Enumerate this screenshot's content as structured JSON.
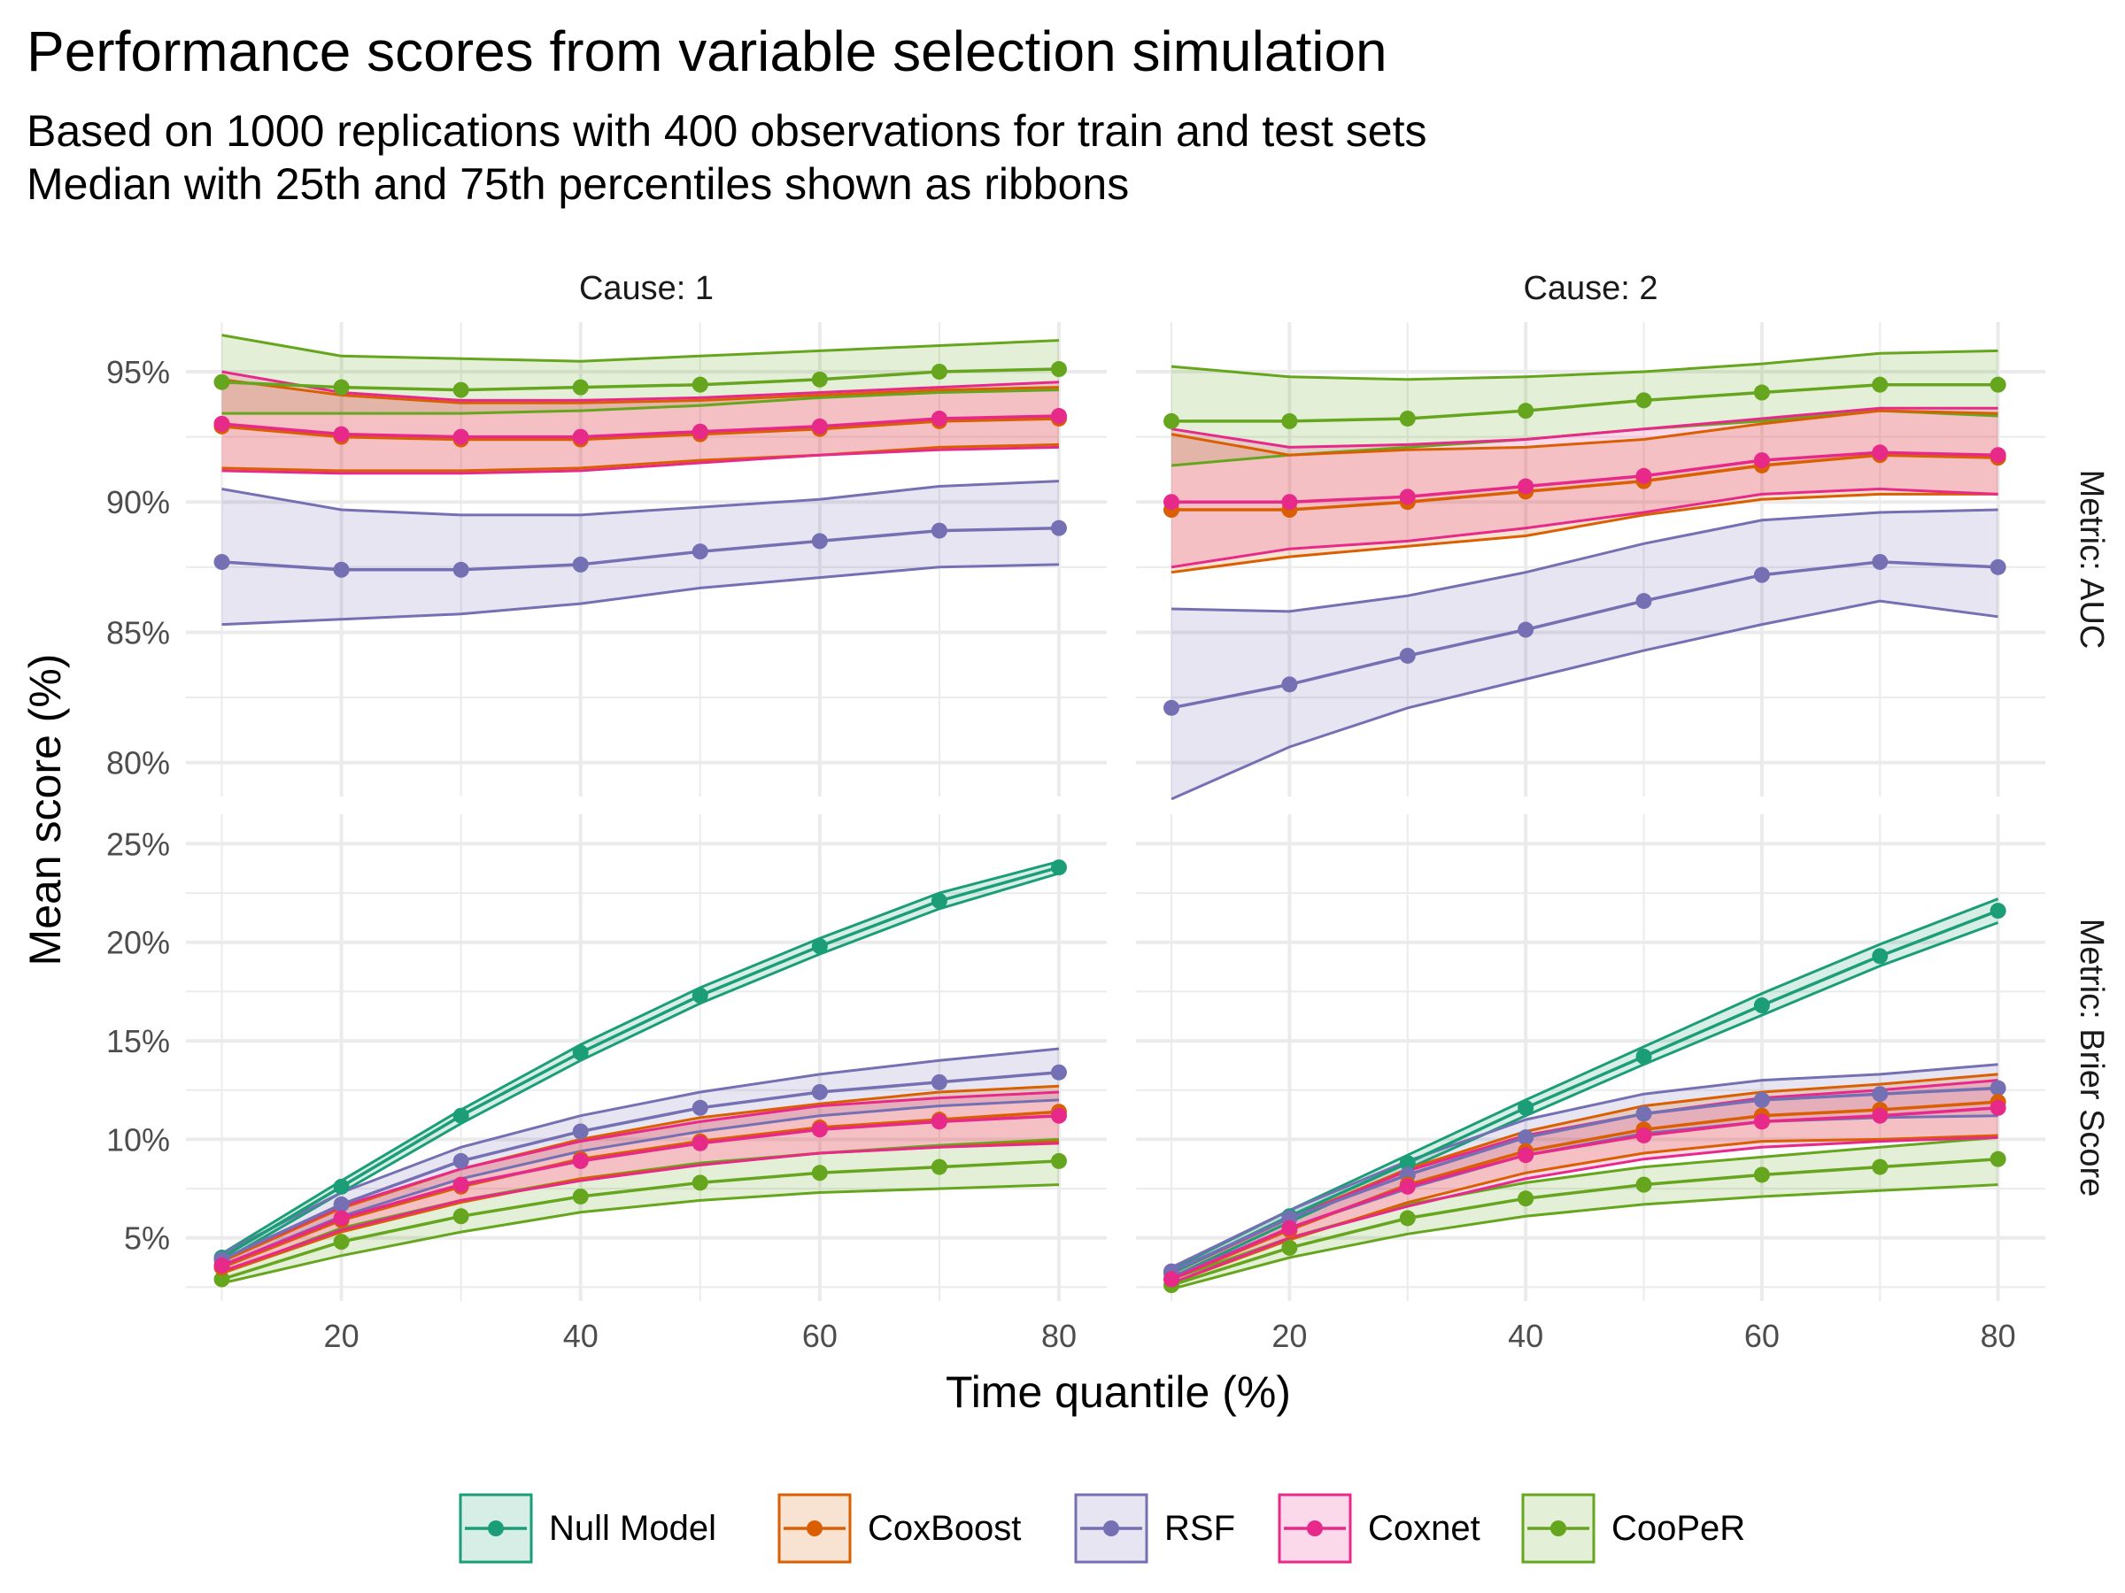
{
  "title": "Performance scores from variable selection simulation",
  "subtitle_lines": [
    "Based on 1000 replications with 400 observations for train and test sets",
    "Median with 25th and 75th percentiles shown as ribbons"
  ],
  "colors": {
    "Null Model": "#1B9E77",
    "CoxBoost": "#D95F02",
    "RSF": "#7570B3",
    "Coxnet": "#E7298A",
    "CooPeR": "#66A61E",
    "grid": "#ebebeb"
  },
  "chart_data": {
    "type": "line",
    "xlabel": "Time quantile (%)",
    "ylabel": "Mean score (%)",
    "x": [
      10,
      20,
      30,
      40,
      50,
      60,
      70,
      80
    ],
    "x_ticks": [
      20,
      40,
      60,
      80
    ],
    "x_range": [
      7,
      84
    ],
    "ribbon_note": "25th-75th percentile ribbons",
    "legend_position": "bottom",
    "legend": [
      "Null Model",
      "CoxBoost",
      "RSF",
      "Coxnet",
      "CooPeR"
    ],
    "column_strips": [
      "Cause: 1",
      "Cause: 2"
    ],
    "row_strips": [
      "Metric: AUC",
      "Metric: Brier Score"
    ],
    "rows": [
      {
        "metric": "AUC",
        "ylim": [
          78.7,
          96.9
        ],
        "y_ticks": [
          80,
          85,
          90,
          95
        ],
        "y_tick_labels": [
          "80%",
          "85%",
          "90%",
          "95%"
        ],
        "panels": [
          {
            "cause": "Cause: 1",
            "series": [
              {
                "name": "RSF",
                "median": [
                  87.7,
                  87.4,
                  87.4,
                  87.6,
                  88.1,
                  88.5,
                  88.9,
                  89.0
                ],
                "lower": [
                  85.3,
                  85.5,
                  85.7,
                  86.1,
                  86.7,
                  87.1,
                  87.5,
                  87.6
                ],
                "upper": [
                  90.5,
                  89.7,
                  89.5,
                  89.5,
                  89.8,
                  90.1,
                  90.6,
                  90.8
                ]
              },
              {
                "name": "CooPeR",
                "median": [
                  94.6,
                  94.4,
                  94.3,
                  94.4,
                  94.5,
                  94.7,
                  95.0,
                  95.1
                ],
                "lower": [
                  93.4,
                  93.4,
                  93.4,
                  93.5,
                  93.7,
                  94.0,
                  94.2,
                  94.3
                ],
                "upper": [
                  96.4,
                  95.6,
                  95.5,
                  95.4,
                  95.6,
                  95.8,
                  96.0,
                  96.2
                ]
              },
              {
                "name": "CoxBoost",
                "median": [
                  92.9,
                  92.5,
                  92.4,
                  92.4,
                  92.6,
                  92.8,
                  93.1,
                  93.2
                ],
                "lower": [
                  91.3,
                  91.2,
                  91.2,
                  91.3,
                  91.6,
                  91.8,
                  92.1,
                  92.2
                ],
                "upper": [
                  94.7,
                  94.1,
                  93.8,
                  93.8,
                  93.9,
                  94.1,
                  94.3,
                  94.4
                ]
              },
              {
                "name": "Coxnet",
                "median": [
                  93.0,
                  92.6,
                  92.5,
                  92.5,
                  92.7,
                  92.9,
                  93.2,
                  93.3
                ],
                "lower": [
                  91.2,
                  91.1,
                  91.1,
                  91.2,
                  91.5,
                  91.8,
                  92.0,
                  92.1
                ],
                "upper": [
                  95.0,
                  94.2,
                  93.9,
                  93.9,
                  94.0,
                  94.2,
                  94.4,
                  94.6
                ]
              }
            ]
          },
          {
            "cause": "Cause: 2",
            "series": [
              {
                "name": "RSF",
                "median": [
                  82.1,
                  83.0,
                  84.1,
                  85.1,
                  86.2,
                  87.2,
                  87.7,
                  87.5
                ],
                "lower": [
                  78.6,
                  80.6,
                  82.1,
                  83.2,
                  84.3,
                  85.3,
                  86.2,
                  85.6
                ],
                "upper": [
                  85.9,
                  85.8,
                  86.4,
                  87.3,
                  88.4,
                  89.3,
                  89.6,
                  89.7
                ]
              },
              {
                "name": "CooPeR",
                "median": [
                  93.1,
                  93.1,
                  93.2,
                  93.5,
                  93.9,
                  94.2,
                  94.5,
                  94.5
                ],
                "lower": [
                  91.4,
                  91.8,
                  92.1,
                  92.4,
                  92.8,
                  93.1,
                  93.5,
                  93.3
                ],
                "upper": [
                  95.2,
                  94.8,
                  94.7,
                  94.8,
                  95.0,
                  95.3,
                  95.7,
                  95.8
                ]
              },
              {
                "name": "CoxBoost",
                "median": [
                  89.7,
                  89.7,
                  90.0,
                  90.4,
                  90.8,
                  91.4,
                  91.8,
                  91.7
                ],
                "lower": [
                  87.3,
                  87.9,
                  88.3,
                  88.7,
                  89.5,
                  90.1,
                  90.3,
                  90.3
                ],
                "upper": [
                  92.6,
                  91.8,
                  92.0,
                  92.1,
                  92.4,
                  93.0,
                  93.5,
                  93.4
                ]
              },
              {
                "name": "Coxnet",
                "median": [
                  90.0,
                  90.0,
                  90.2,
                  90.6,
                  91.0,
                  91.6,
                  91.9,
                  91.8
                ],
                "lower": [
                  87.5,
                  88.2,
                  88.5,
                  89.0,
                  89.6,
                  90.3,
                  90.5,
                  90.3
                ],
                "upper": [
                  92.8,
                  92.1,
                  92.2,
                  92.4,
                  92.8,
                  93.2,
                  93.6,
                  93.6
                ]
              }
            ]
          }
        ]
      },
      {
        "metric": "Brier Score",
        "ylim": [
          1.8,
          26.5
        ],
        "y_ticks": [
          5,
          10,
          15,
          20,
          25
        ],
        "y_tick_labels": [
          "5%",
          "10%",
          "15%",
          "20%",
          "25%"
        ],
        "panels": [
          {
            "cause": "Cause: 1",
            "series": [
              {
                "name": "Null Model",
                "median": [
                  4.0,
                  7.6,
                  11.2,
                  14.4,
                  17.3,
                  19.8,
                  22.1,
                  23.8
                ],
                "lower": [
                  3.8,
                  7.3,
                  10.8,
                  14.0,
                  16.9,
                  19.4,
                  21.7,
                  23.5
                ],
                "upper": [
                  4.2,
                  7.9,
                  11.5,
                  14.8,
                  17.7,
                  20.2,
                  22.5,
                  24.1
                ]
              },
              {
                "name": "RSF",
                "median": [
                  3.9,
                  6.7,
                  8.9,
                  10.4,
                  11.6,
                  12.4,
                  12.9,
                  13.4
                ],
                "lower": [
                  3.6,
                  6.1,
                  8.0,
                  9.4,
                  10.4,
                  11.2,
                  11.7,
                  12.0
                ],
                "upper": [
                  4.2,
                  7.3,
                  9.6,
                  11.2,
                  12.4,
                  13.3,
                  14.0,
                  14.6
                ]
              },
              {
                "name": "CooPeR",
                "median": [
                  2.9,
                  4.8,
                  6.1,
                  7.1,
                  7.8,
                  8.3,
                  8.6,
                  8.9
                ],
                "lower": [
                  2.7,
                  4.1,
                  5.3,
                  6.3,
                  6.9,
                  7.3,
                  7.5,
                  7.7
                ],
                "upper": [
                  3.2,
                  5.5,
                  6.9,
                  8.0,
                  8.8,
                  9.3,
                  9.7,
                  10.0
                ]
              },
              {
                "name": "CoxBoost",
                "median": [
                  3.5,
                  5.9,
                  7.6,
                  9.0,
                  9.9,
                  10.6,
                  11.0,
                  11.4
                ],
                "lower": [
                  3.2,
                  5.3,
                  6.8,
                  8.0,
                  8.7,
                  9.3,
                  9.6,
                  9.9
                ],
                "upper": [
                  3.8,
                  6.5,
                  8.5,
                  10.0,
                  11.1,
                  11.8,
                  12.4,
                  12.7
                ]
              },
              {
                "name": "Coxnet",
                "median": [
                  3.6,
                  6.0,
                  7.7,
                  8.9,
                  9.8,
                  10.5,
                  10.9,
                  11.2
                ],
                "lower": [
                  3.3,
                  5.4,
                  6.9,
                  7.9,
                  8.7,
                  9.3,
                  9.6,
                  9.8
                ],
                "upper": [
                  3.9,
                  6.6,
                  8.5,
                  9.9,
                  10.9,
                  11.7,
                  12.1,
                  12.4
                ]
              }
            ]
          },
          {
            "cause": "Cause: 2",
            "series": [
              {
                "name": "Null Model",
                "median": [
                  3.2,
                  6.1,
                  8.8,
                  11.6,
                  14.2,
                  16.8,
                  19.3,
                  21.6
                ],
                "lower": [
                  3.0,
                  5.8,
                  8.5,
                  11.2,
                  13.8,
                  16.3,
                  18.8,
                  21.0
                ],
                "upper": [
                  3.4,
                  6.4,
                  9.2,
                  12.0,
                  14.7,
                  17.4,
                  19.9,
                  22.2
                ]
              },
              {
                "name": "RSF",
                "median": [
                  3.3,
                  6.0,
                  8.2,
                  10.1,
                  11.3,
                  12.0,
                  12.3,
                  12.6
                ],
                "lower": [
                  3.0,
                  5.5,
                  7.5,
                  9.2,
                  10.3,
                  10.9,
                  11.1,
                  11.2
                ],
                "upper": [
                  3.5,
                  6.4,
                  8.9,
                  11.0,
                  12.3,
                  13.0,
                  13.3,
                  13.8
                ]
              },
              {
                "name": "CooPeR",
                "median": [
                  2.6,
                  4.5,
                  6.0,
                  7.0,
                  7.7,
                  8.2,
                  8.6,
                  9.0
                ],
                "lower": [
                  2.4,
                  4.0,
                  5.2,
                  6.1,
                  6.7,
                  7.1,
                  7.4,
                  7.7
                ],
                "upper": [
                  2.9,
                  5.0,
                  6.7,
                  7.8,
                  8.6,
                  9.1,
                  9.6,
                  10.1
                ]
              },
              {
                "name": "CoxBoost",
                "median": [
                  2.9,
                  5.4,
                  7.7,
                  9.4,
                  10.5,
                  11.2,
                  11.5,
                  11.9
                ],
                "lower": [
                  2.7,
                  4.9,
                  6.8,
                  8.3,
                  9.3,
                  9.9,
                  10.0,
                  10.2
                ],
                "upper": [
                  3.2,
                  6.0,
                  8.5,
                  10.4,
                  11.7,
                  12.4,
                  12.8,
                  13.3
                ]
              },
              {
                "name": "Coxnet",
                "median": [
                  2.9,
                  5.5,
                  7.6,
                  9.2,
                  10.2,
                  10.9,
                  11.2,
                  11.6
                ],
                "lower": [
                  2.7,
                  5.0,
                  6.6,
                  8.0,
                  9.0,
                  9.6,
                  9.9,
                  10.1
                ],
                "upper": [
                  3.2,
                  6.0,
                  8.4,
                  10.2,
                  11.3,
                  12.1,
                  12.5,
                  13.0
                ]
              }
            ]
          }
        ]
      }
    ]
  }
}
